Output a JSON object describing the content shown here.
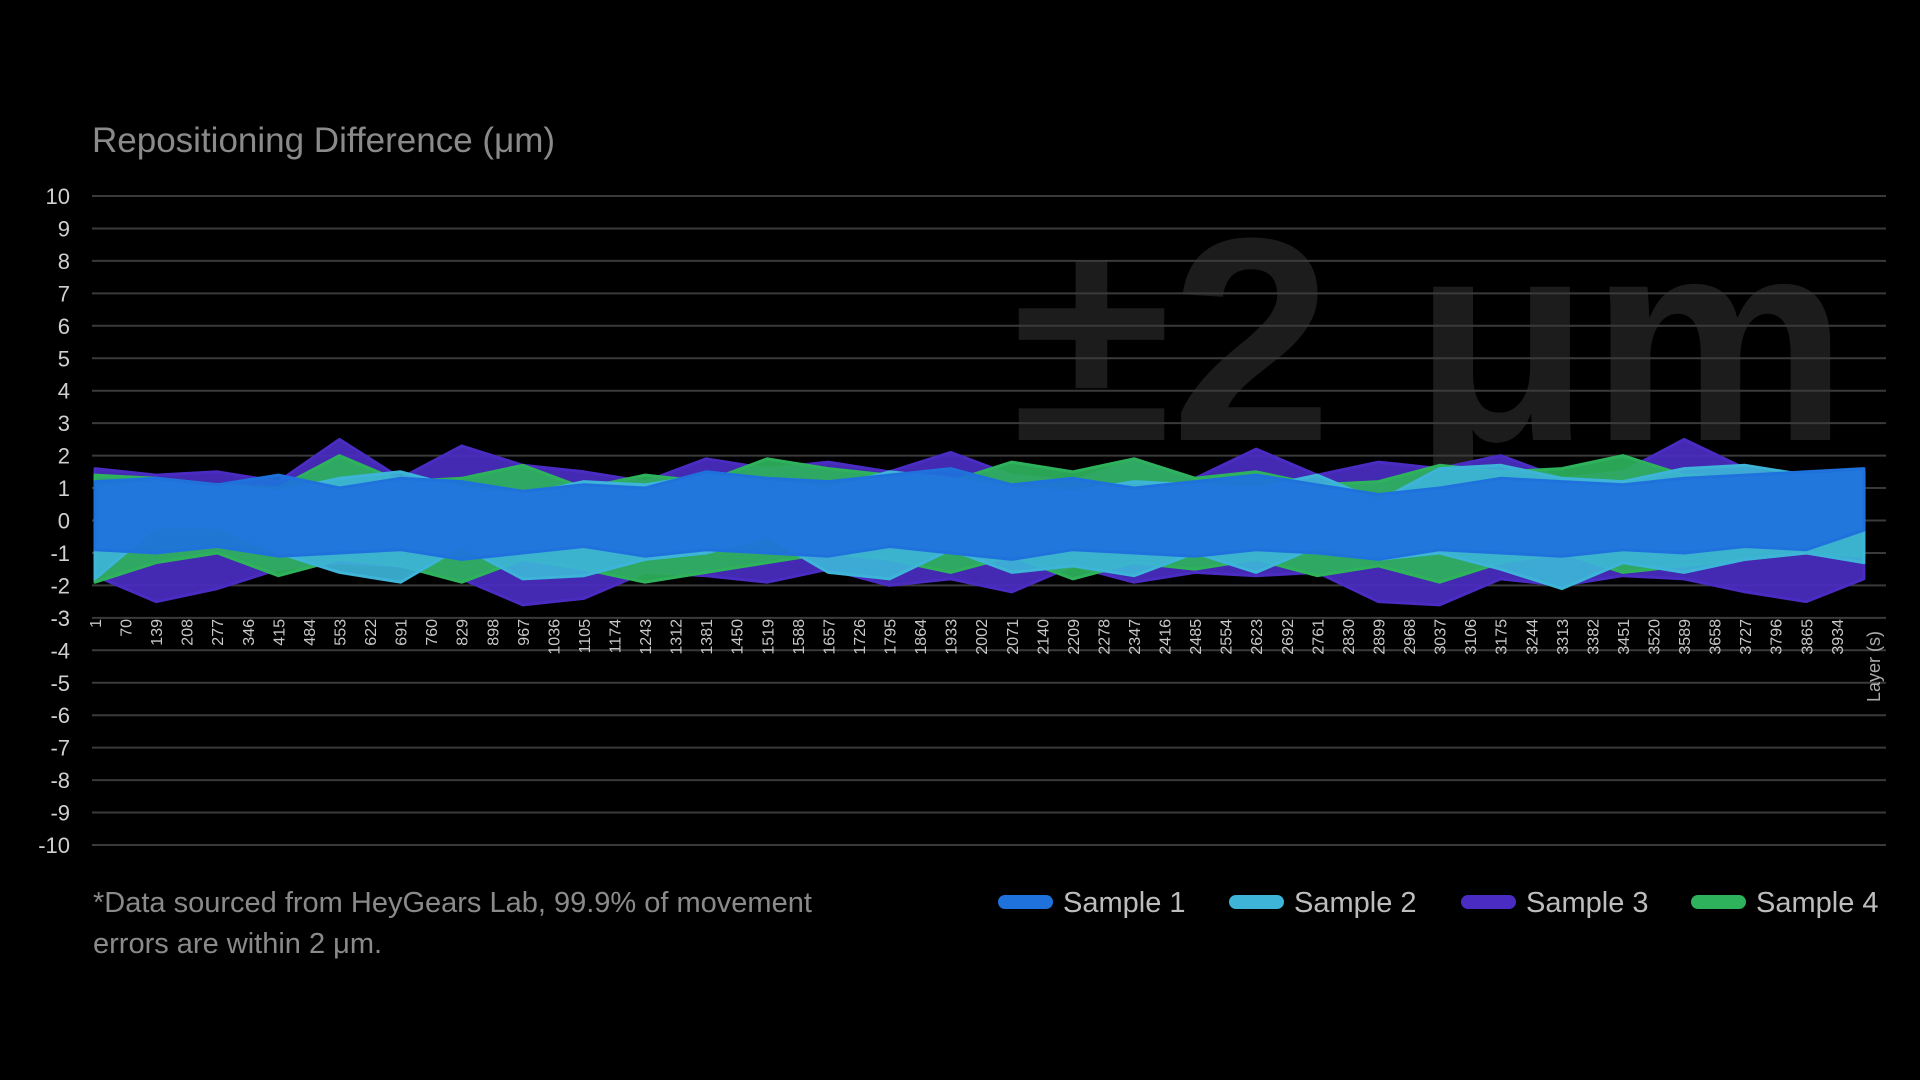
{
  "chart_data": {
    "type": "range-area",
    "title": "Repositioning Difference (μm)",
    "watermark": "±2 μm",
    "x_label": "Layer (s)",
    "footnote": [
      "*Data sourced from HeyGears Lab, 99.9% of movement",
      "errors are within 2 μm."
    ],
    "grid": true,
    "ylim": [
      -10,
      10
    ],
    "yticks": [
      -10,
      -9,
      -8,
      -7,
      -6,
      -5,
      -4,
      -3,
      -2,
      -1,
      0,
      1,
      2,
      3,
      4,
      5,
      6,
      7,
      8,
      9,
      10
    ],
    "xlim": [
      1,
      4045
    ],
    "xticks": [
      1,
      70,
      139,
      208,
      277,
      346,
      415,
      484,
      553,
      622,
      691,
      760,
      829,
      898,
      967,
      1036,
      1105,
      1174,
      1243,
      1312,
      1381,
      1450,
      1519,
      1588,
      1657,
      1726,
      1795,
      1864,
      1933,
      2002,
      2071,
      2140,
      2209,
      2278,
      2347,
      2416,
      2485,
      2554,
      2623,
      2692,
      2761,
      2830,
      2899,
      2968,
      3037,
      3106,
      3175,
      3244,
      3313,
      3382,
      3451,
      3520,
      3589,
      3658,
      3727,
      3796,
      3865,
      3934
    ],
    "x": [
      1,
      139,
      277,
      415,
      553,
      691,
      829,
      967,
      1105,
      1243,
      1381,
      1519,
      1657,
      1795,
      1933,
      2071,
      2209,
      2347,
      2485,
      2623,
      2761,
      2899,
      3037,
      3175,
      3313,
      3451,
      3589,
      3727,
      3865,
      3995
    ],
    "series": [
      {
        "name": "Sample 1",
        "color": "#1f72dc",
        "high": [
          1.2,
          1.3,
          1.1,
          1.4,
          1.0,
          1.3,
          1.2,
          0.9,
          1.1,
          1.0,
          1.5,
          1.3,
          1.2,
          1.4,
          1.6,
          1.1,
          1.3,
          1.0,
          1.2,
          1.4,
          1.1,
          0.8,
          1.0,
          1.3,
          1.2,
          1.1,
          1.3,
          1.4,
          1.5,
          1.6
        ],
        "low": [
          -0.9,
          -1.0,
          -0.8,
          -1.1,
          -1.0,
          -0.9,
          -1.2,
          -1.0,
          -0.8,
          -1.1,
          -0.9,
          -1.0,
          -1.1,
          -0.8,
          -1.0,
          -1.2,
          -0.9,
          -1.0,
          -1.1,
          -0.9,
          -1.0,
          -1.2,
          -0.9,
          -1.0,
          -1.1,
          -0.9,
          -1.0,
          -0.8,
          -0.9,
          -0.3
        ]
      },
      {
        "name": "Sample 2",
        "color": "#3db4d8",
        "high": [
          1.0,
          1.2,
          1.1,
          0.9,
          1.3,
          1.5,
          1.0,
          0.8,
          1.2,
          1.1,
          1.4,
          1.2,
          1.0,
          1.5,
          1.3,
          1.0,
          0.9,
          1.2,
          1.1,
          1.0,
          1.4,
          0.6,
          1.6,
          1.7,
          1.3,
          1.2,
          1.6,
          1.7,
          1.4,
          1.5
        ],
        "low": [
          -1.8,
          -0.2,
          -0.2,
          -1.0,
          -1.6,
          -1.9,
          -0.8,
          -1.8,
          -1.7,
          -1.2,
          -1.0,
          -0.5,
          -1.6,
          -1.8,
          -0.9,
          -1.6,
          -1.4,
          -1.7,
          -1.0,
          -1.6,
          -0.8,
          -1.2,
          -1.0,
          -1.5,
          -2.1,
          -1.3,
          -1.6,
          -1.2,
          -1.0,
          -1.3
        ]
      },
      {
        "name": "Sample 3",
        "color": "#4a2cc2",
        "high": [
          1.6,
          1.4,
          1.5,
          1.2,
          2.5,
          1.3,
          2.3,
          1.7,
          1.5,
          1.2,
          1.9,
          1.6,
          1.8,
          1.5,
          2.1,
          1.4,
          1.2,
          1.9,
          1.3,
          2.2,
          1.4,
          1.8,
          1.6,
          2.0,
          1.3,
          1.5,
          2.5,
          1.6,
          1.2,
          1.5
        ],
        "low": [
          -1.7,
          -2.5,
          -2.1,
          -1.5,
          -1.3,
          -1.4,
          -1.8,
          -2.6,
          -2.4,
          -1.6,
          -1.7,
          -1.9,
          -1.5,
          -2.0,
          -1.8,
          -2.2,
          -1.4,
          -1.9,
          -1.6,
          -1.7,
          -1.6,
          -2.5,
          -2.6,
          -1.8,
          -2.0,
          -1.7,
          -1.8,
          -2.2,
          -2.5,
          -1.8
        ]
      },
      {
        "name": "Sample 4",
        "color": "#2eb35c",
        "high": [
          1.4,
          1.3,
          1.1,
          1.0,
          2.0,
          1.2,
          1.3,
          1.7,
          1.0,
          1.4,
          1.2,
          1.9,
          1.6,
          1.4,
          1.2,
          1.8,
          1.5,
          1.9,
          1.3,
          1.5,
          1.1,
          1.2,
          1.7,
          1.5,
          1.6,
          2.0,
          1.4,
          1.3,
          1.4,
          1.2
        ],
        "low": [
          -1.9,
          -1.3,
          -1.0,
          -1.7,
          -1.2,
          -1.4,
          -1.9,
          -1.2,
          -1.5,
          -1.9,
          -1.6,
          -1.3,
          -1.0,
          -1.2,
          -1.6,
          -1.1,
          -1.8,
          -1.3,
          -1.5,
          -1.2,
          -1.7,
          -1.4,
          -1.9,
          -1.3,
          -1.0,
          -1.6,
          -1.4,
          -1.2,
          -1.0,
          -1.1
        ]
      }
    ]
  }
}
